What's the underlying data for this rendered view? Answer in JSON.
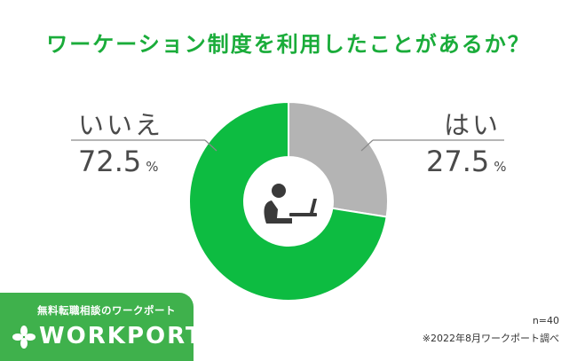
{
  "colors": {
    "title": "#1aac3a",
    "no": "#0dbc41",
    "yes": "#b4b4b4",
    "badge": "#3fb14c",
    "icon": "#3a3a3a",
    "leader": "#8a8a8a"
  },
  "icons": {
    "center": "person-at-laptop-icon",
    "logo": "clover-icon"
  },
  "chart_data": {
    "type": "pie",
    "donut": true,
    "title": "ワーケーション制度を利用したことがあるか？",
    "slices": [
      {
        "label": "はい",
        "value": 27.5,
        "display": "27.5"
      },
      {
        "label": "いいえ",
        "value": 72.5,
        "display": "72.5"
      }
    ],
    "unit": "%",
    "start": "12 o'clock, clockwise"
  },
  "footer": {
    "tagline": "無料転職相談のワークポート",
    "logo": "WORKPORT",
    "sample": "n=40",
    "source": "※2022年8月ワークポート調べ"
  }
}
